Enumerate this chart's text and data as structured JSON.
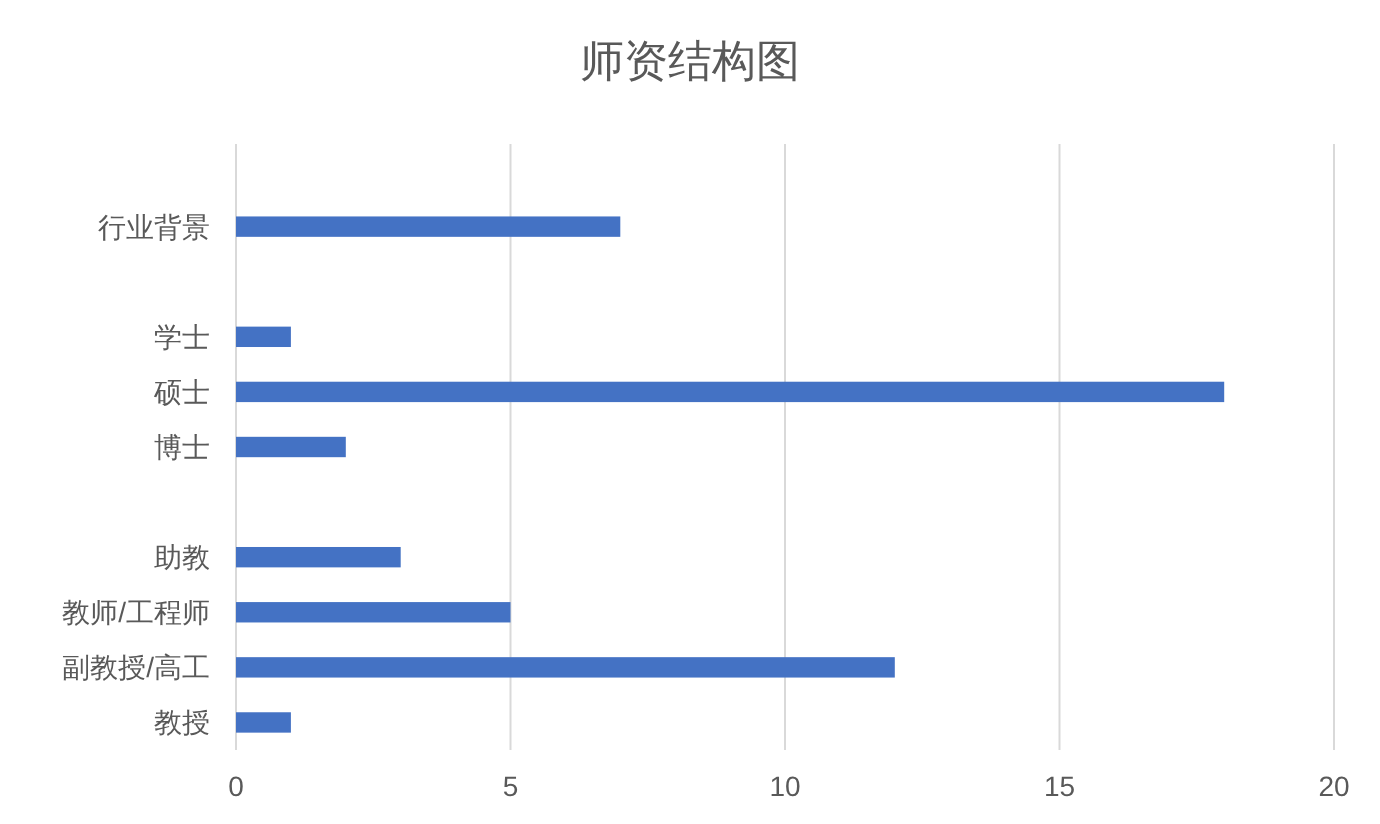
{
  "chart_data": {
    "type": "bar",
    "orientation": "horizontal",
    "title": "师资结构图",
    "categories": [
      null,
      "行业背景",
      null,
      "学士",
      "硕士",
      "博士",
      null,
      "助教",
      "教师/工程师",
      "副教授/高工",
      "教授"
    ],
    "values": [
      null,
      7,
      null,
      1,
      18,
      2,
      null,
      3,
      5,
      12,
      1
    ],
    "color": "#4472c4",
    "xlim": [
      0,
      20
    ],
    "xticks": [
      0,
      5,
      10,
      15,
      20
    ],
    "grid": "x"
  }
}
